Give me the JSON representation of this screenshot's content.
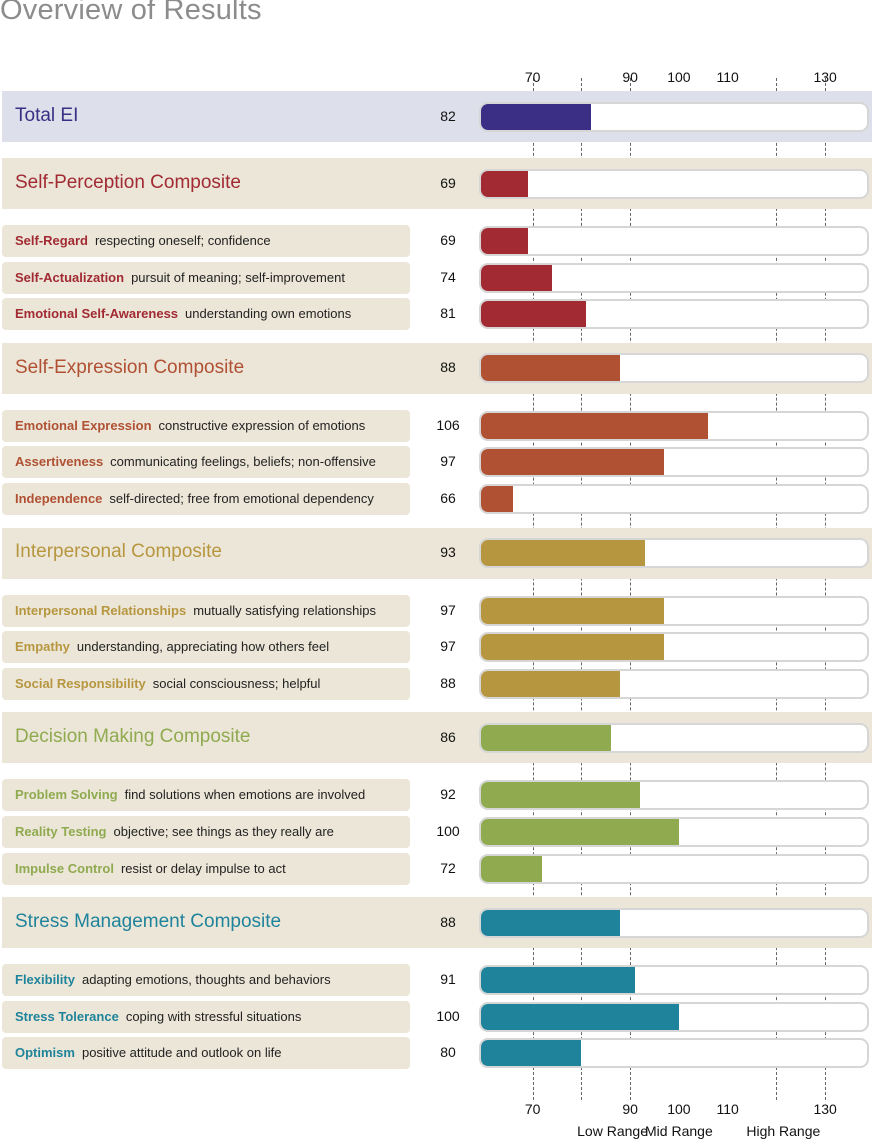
{
  "title": "Overview of Results",
  "chart_data": {
    "type": "bar",
    "orientation": "horizontal",
    "axis_ticks": [
      70,
      90,
      100,
      110,
      130
    ],
    "xlim": [
      59,
      139
    ],
    "grid": true,
    "range_labels": [
      "Low Range",
      "Mid Range",
      "High Range"
    ],
    "colors": {
      "total": "#3a2f84",
      "self_perception": "#a12a33",
      "self_expression": "#b05134",
      "interpersonal": "#b6963f",
      "decision_making": "#8faa4f",
      "stress_management": "#1f849b"
    },
    "rows": [
      {
        "kind": "total",
        "name": "Total EI",
        "desc": "",
        "value": 82,
        "color_key": "total"
      },
      {
        "kind": "composite",
        "name": "Self-Perception Composite",
        "desc": "",
        "value": 69,
        "color_key": "self_perception"
      },
      {
        "kind": "sub",
        "name": "Self-Regard",
        "desc": "respecting oneself; confidence",
        "value": 69,
        "color_key": "self_perception"
      },
      {
        "kind": "sub",
        "name": "Self-Actualization",
        "desc": "pursuit of meaning; self-improvement",
        "value": 74,
        "color_key": "self_perception"
      },
      {
        "kind": "sub",
        "name": "Emotional Self-Awareness",
        "desc": "understanding own emotions",
        "value": 81,
        "color_key": "self_perception"
      },
      {
        "kind": "composite",
        "name": "Self-Expression Composite",
        "desc": "",
        "value": 88,
        "color_key": "self_expression"
      },
      {
        "kind": "sub",
        "name": "Emotional Expression",
        "desc": "constructive expression of emotions",
        "value": 106,
        "color_key": "self_expression"
      },
      {
        "kind": "sub",
        "name": "Assertiveness",
        "desc": "communicating feelings, beliefs; non-offensive",
        "value": 97,
        "color_key": "self_expression"
      },
      {
        "kind": "sub",
        "name": "Independence",
        "desc": "self-directed; free from emotional dependency",
        "value": 66,
        "color_key": "self_expression"
      },
      {
        "kind": "composite",
        "name": "Interpersonal Composite",
        "desc": "",
        "value": 93,
        "color_key": "interpersonal"
      },
      {
        "kind": "sub",
        "name": "Interpersonal Relationships",
        "desc": "mutually satisfying relationships",
        "value": 97,
        "color_key": "interpersonal"
      },
      {
        "kind": "sub",
        "name": "Empathy",
        "desc": "understanding, appreciating how others feel",
        "value": 97,
        "color_key": "interpersonal"
      },
      {
        "kind": "sub",
        "name": "Social Responsibility",
        "desc": "social consciousness; helpful",
        "value": 88,
        "color_key": "interpersonal"
      },
      {
        "kind": "composite",
        "name": "Decision Making Composite",
        "desc": "",
        "value": 86,
        "color_key": "decision_making"
      },
      {
        "kind": "sub",
        "name": "Problem Solving",
        "desc": "find solutions when emotions are involved",
        "value": 92,
        "color_key": "decision_making"
      },
      {
        "kind": "sub",
        "name": "Reality Testing",
        "desc": "objective; see things as they really are",
        "value": 100,
        "color_key": "decision_making"
      },
      {
        "kind": "sub",
        "name": "Impulse Control",
        "desc": "resist or delay impulse to act",
        "value": 72,
        "color_key": "decision_making"
      },
      {
        "kind": "composite",
        "name": "Stress Management Composite",
        "desc": "",
        "value": 88,
        "color_key": "stress_management"
      },
      {
        "kind": "sub",
        "name": "Flexibility",
        "desc": "adapting emotions, thoughts and behaviors",
        "value": 91,
        "color_key": "stress_management"
      },
      {
        "kind": "sub",
        "name": "Stress Tolerance",
        "desc": "coping with stressful situations",
        "value": 100,
        "color_key": "stress_management"
      },
      {
        "kind": "sub",
        "name": "Optimism",
        "desc": "positive attitude and outlook on life",
        "value": 80,
        "color_key": "stress_management"
      }
    ]
  }
}
